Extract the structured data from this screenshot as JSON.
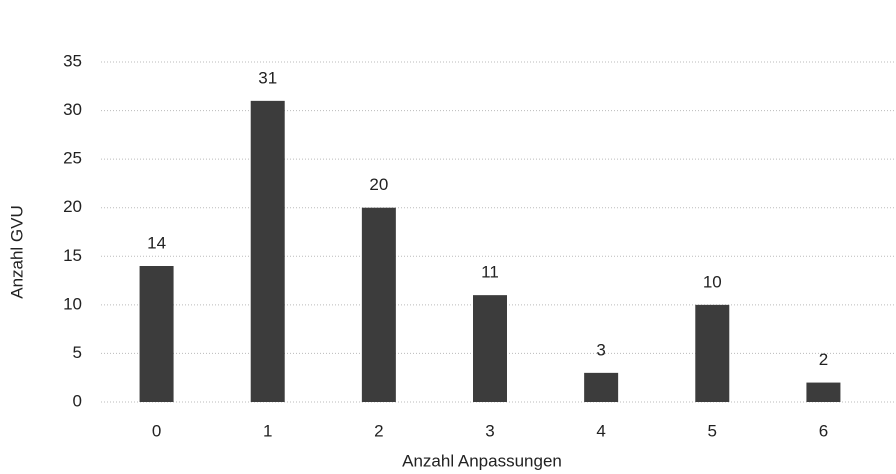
{
  "chart_data": {
    "type": "bar",
    "x_label": "Anzahl Anpassungen",
    "y_label": "Anzahl GVU",
    "categories": [
      "0",
      "1",
      "2",
      "3",
      "4",
      "5",
      "6"
    ],
    "values": [
      14,
      31,
      20,
      11,
      3,
      10,
      2
    ],
    "color": "#3c3c3c",
    "ylim": [
      0,
      35
    ],
    "yticks": [
      0,
      5,
      10,
      15,
      20,
      25,
      30,
      35
    ],
    "grid": true
  }
}
